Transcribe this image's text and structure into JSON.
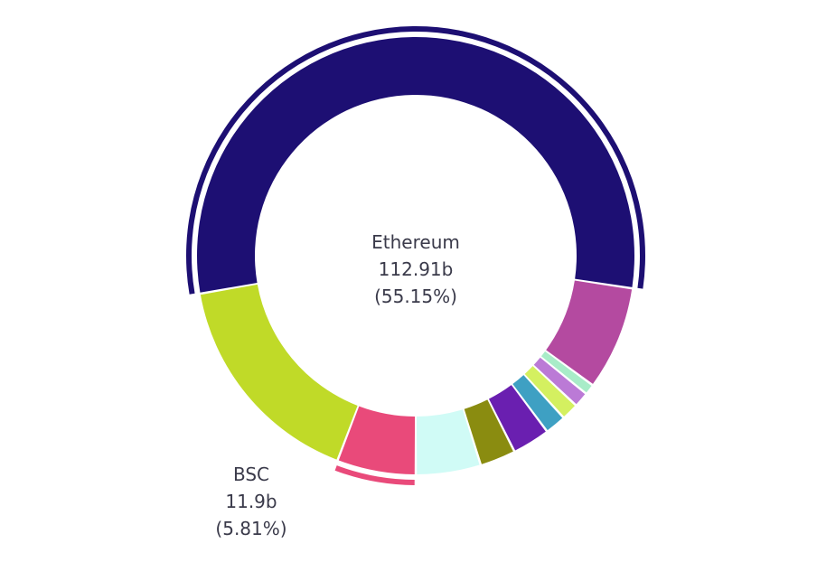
{
  "chart_data": {
    "type": "pie",
    "style": "donut",
    "slices": [
      {
        "name": "Ethereum",
        "label": "Ethereum",
        "value_text": "112.91b",
        "percent_text": "(55.15%)",
        "value": 112.91,
        "percent": 55.15,
        "color": "#1d0f73",
        "highlighted": true
      },
      {
        "name": "",
        "value": 15.7,
        "percent": 7.67,
        "color": "#b44aa0"
      },
      {
        "name": "",
        "value": 1.6,
        "percent": 0.78,
        "color": "#a8ecc8"
      },
      {
        "name": "",
        "value": 2.3,
        "percent": 1.12,
        "color": "#bb7ad6"
      },
      {
        "name": "",
        "value": 2.6,
        "percent": 1.27,
        "color": "#d4f060"
      },
      {
        "name": "",
        "value": 3.2,
        "percent": 1.56,
        "color": "#3ea0c3"
      },
      {
        "name": "",
        "value": 5.7,
        "percent": 2.78,
        "color": "#6a1fb0"
      },
      {
        "name": "",
        "value": 5.4,
        "percent": 2.64,
        "color": "#8a8c10"
      },
      {
        "name": "",
        "value": 9.8,
        "percent": 4.79,
        "color": "#d0fbf6"
      },
      {
        "name": "BSC",
        "label": "BSC",
        "value_text": "11.9b",
        "percent_text": "(5.81%)",
        "value": 11.9,
        "percent": 5.81,
        "color": "#e94a7a",
        "highlighted": true
      },
      {
        "name": "",
        "value": 33.6,
        "percent": 16.41,
        "color": "#c0da28"
      }
    ],
    "legend": "none"
  }
}
